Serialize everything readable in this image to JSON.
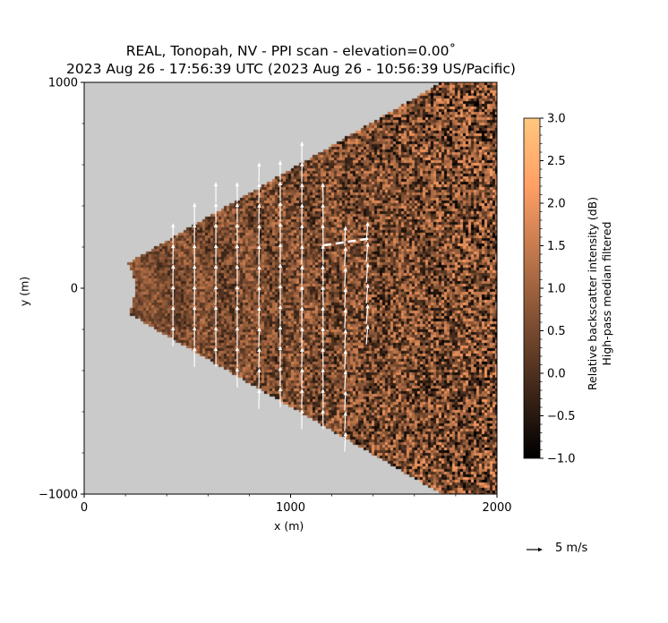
{
  "title_line1": "REAL, Tonopah, NV - PPI scan - elevation=0.00˚",
  "title_line2": "2023 Aug 26 - 17:56:39 UTC (2023 Aug 26 - 10:56:39 US/Pacific)",
  "chart_data": {
    "type": "heatmap",
    "subtype": "ppi-sector-with-quiver",
    "xlabel": "x (m)",
    "ylabel": "y (m)",
    "xlim": [
      0,
      2000
    ],
    "ylim": [
      -1000,
      1000
    ],
    "xticks": [
      "0",
      "1000",
      "2000"
    ],
    "xtick_values": [
      0,
      1000,
      2000
    ],
    "yticks": [
      "−1000",
      "0",
      "1000"
    ],
    "ytick_values": [
      -1000,
      0,
      1000
    ],
    "minor_tick_step": 200,
    "sector": {
      "azimuth_half_width_deg": 30,
      "range_min_m": 245,
      "range_max_m": 2400
    },
    "background_color": "#cacaca",
    "colorbar": {
      "colormap": "copper",
      "range": [
        -1.0,
        3.0
      ],
      "ticks": [
        "−1.0",
        "−0.5",
        "0.0",
        "0.5",
        "1.0",
        "1.5",
        "2.0",
        "2.5",
        "3.0"
      ],
      "tick_values": [
        -1.0,
        -0.5,
        0.0,
        0.5,
        1.0,
        1.5,
        2.0,
        2.5,
        3.0
      ],
      "label_line1": "Relative backscatter intensity (dB)",
      "label_line2": "High-pass median filtered"
    },
    "vector_field": {
      "grid_step_m": 100,
      "columns": [
        {
          "x": 430,
          "y_start": -282,
          "y_end": 256,
          "u": 0.05,
          "v": 6.3
        },
        {
          "x": 534,
          "y_start": -382,
          "y_end": 356,
          "u": 0.05,
          "v": 6.3
        },
        {
          "x": 638,
          "y_start": -382,
          "y_end": 455,
          "u": 0.0,
          "v": 6.3
        },
        {
          "x": 742,
          "y_start": -482,
          "y_end": 451,
          "u": -0.05,
          "v": 6.3
        },
        {
          "x": 846,
          "y_start": -586,
          "y_end": 551,
          "u": 0.15,
          "v": 6.3
        },
        {
          "x": 950,
          "y_start": -577,
          "y_end": 551,
          "u": 0.0,
          "v": 6.3
        },
        {
          "x": 1054,
          "y_start": -685,
          "y_end": 659,
          "u": 0.1,
          "v": 6.3
        },
        {
          "x": 1158,
          "y_start": -685,
          "y_end": 451,
          "u": -0.1,
          "v": 6.3
        },
        {
          "x": 1262,
          "y_start": -794,
          "y_end": 239,
          "u": 0.3,
          "v": 6.2
        },
        {
          "x": 1367,
          "y_start": -273,
          "y_end": 239,
          "u": 0.5,
          "v": 6.2
        }
      ],
      "vector_color": "#ffffff"
    },
    "dashed_line": {
      "x": [
        1158,
        1393
      ],
      "y": [
        208,
        243
      ],
      "color": "#ffffff"
    },
    "quiver_key": {
      "value": 5,
      "label": "5 m/s"
    }
  }
}
